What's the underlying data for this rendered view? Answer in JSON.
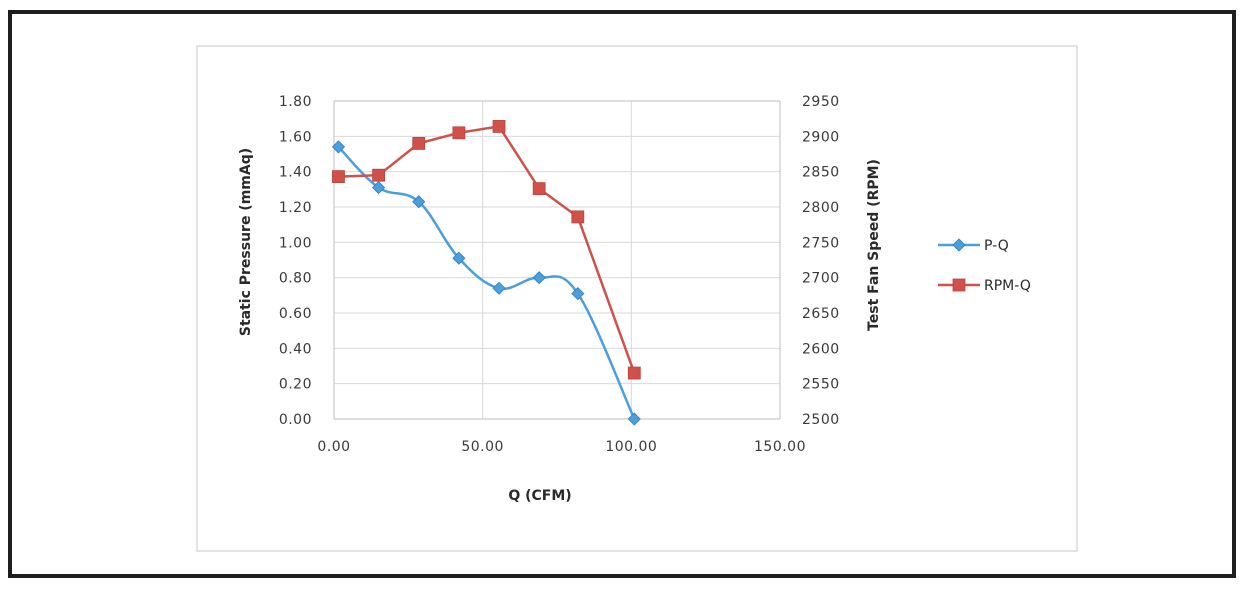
{
  "chart_data": {
    "type": "line",
    "title": "",
    "xlabel": "Q (CFM)",
    "ylabel_left": "Static Pressure (mmAq)",
    "ylabel_right": "Test Fan Speed (RPM)",
    "xlim": [
      0,
      150
    ],
    "ylim_left": [
      0,
      1.8
    ],
    "ylim_right": [
      2500,
      2950
    ],
    "x_ticks": [
      "0.00",
      "50.00",
      "100.00",
      "150.00"
    ],
    "y_left_ticks": [
      "0.00",
      "0.20",
      "0.40",
      "0.60",
      "0.80",
      "1.00",
      "1.20",
      "1.40",
      "1.60",
      "1.80"
    ],
    "y_right_ticks": [
      "2500",
      "2550",
      "2600",
      "2650",
      "2700",
      "2750",
      "2800",
      "2850",
      "2900",
      "2950"
    ],
    "grid": true,
    "legend_position": "right",
    "series": [
      {
        "name": "P-Q",
        "axis": "left",
        "marker": "diamond",
        "color": "#4a9fdc",
        "x": [
          1.5,
          15.0,
          28.5,
          42.0,
          55.5,
          69.0,
          82.0,
          101.0
        ],
        "y": [
          1.54,
          1.31,
          1.23,
          0.91,
          0.74,
          0.8,
          0.71,
          0.0
        ]
      },
      {
        "name": "RPM-Q",
        "axis": "right",
        "marker": "square",
        "color": "#d0504a",
        "x": [
          1.5,
          15.0,
          28.5,
          42.0,
          55.5,
          69.0,
          82.0,
          101.0
        ],
        "y": [
          2843,
          2845,
          2890,
          2905,
          2914,
          2826,
          2786,
          2565
        ]
      }
    ]
  }
}
